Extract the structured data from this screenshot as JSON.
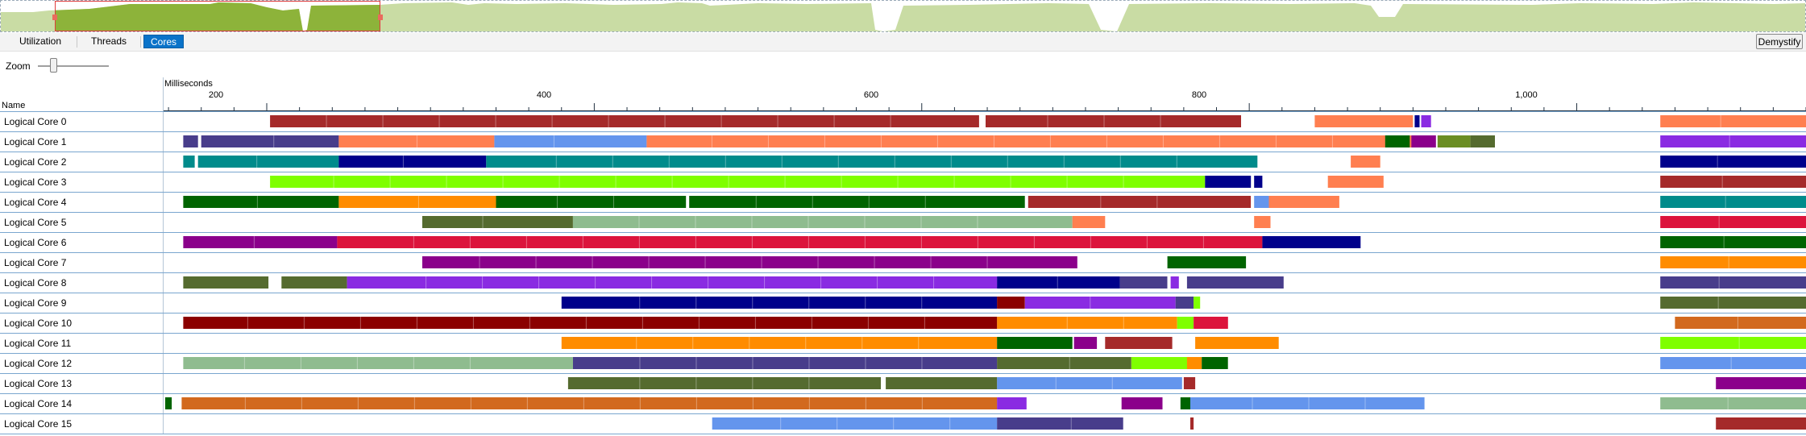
{
  "tabs": [
    {
      "label": "Utilization",
      "active": false
    },
    {
      "label": "Threads",
      "active": false
    },
    {
      "label": "Cores",
      "active": true
    }
  ],
  "demystify_label": "Demystify",
  "zoom": {
    "label": "Zoom"
  },
  "timeline": {
    "unit_label": "Milliseconds",
    "name_header": "Name",
    "ticks": [
      "200",
      "400",
      "600",
      "800",
      "1,000"
    ]
  },
  "cores": [
    {
      "label": "Logical Core 0"
    },
    {
      "label": "Logical Core 1"
    },
    {
      "label": "Logical Core 2"
    },
    {
      "label": "Logical Core 3"
    },
    {
      "label": "Logical Core 4"
    },
    {
      "label": "Logical Core 5"
    },
    {
      "label": "Logical Core 6"
    },
    {
      "label": "Logical Core 7"
    },
    {
      "label": "Logical Core 8"
    },
    {
      "label": "Logical Core 9"
    },
    {
      "label": "Logical Core 10"
    },
    {
      "label": "Logical Core 11"
    },
    {
      "label": "Logical Core 12"
    },
    {
      "label": "Logical Core 13"
    },
    {
      "label": "Logical Core 14"
    },
    {
      "label": "Logical Core 15"
    }
  ],
  "timeline_range_ms": [
    137,
    1140
  ],
  "colors": {
    "accent": "#0a73c9",
    "overview_fill": "#c9dca4",
    "overview_selected_fill": "#8db33a",
    "selection_border": "#e03c3c",
    "row_border": "#7aa6cf"
  },
  "segments": [
    [
      [
        "#a52a2a",
        202,
        635
      ],
      [
        "#a52a2a",
        639,
        795
      ],
      [
        "#ff7f50",
        840,
        900
      ],
      [
        "#00008b",
        901,
        904
      ],
      [
        "#8a2be2",
        905,
        911
      ],
      [
        "#ff7f50",
        1051,
        1140
      ]
    ],
    [
      [
        "#483d8b",
        149,
        158
      ],
      [
        "#483d8b",
        160,
        244
      ],
      [
        "#ff7f50",
        244,
        339
      ],
      [
        "#6495ed",
        339,
        432
      ],
      [
        "#ff7f50",
        432,
        903
      ],
      [
        "#006400",
        883,
        898
      ],
      [
        "#8b008b",
        899,
        914
      ],
      [
        "#6b8e23",
        915,
        935
      ],
      [
        "#556b2f",
        935,
        950
      ],
      [
        "#8a2be2",
        1051,
        1140
      ]
    ],
    [
      [
        "#008b8b",
        149,
        156
      ],
      [
        "#008b8b",
        158,
        244
      ],
      [
        "#00008b",
        244,
        334
      ],
      [
        "#008b8b",
        334,
        805
      ],
      [
        "#ff7f50",
        862,
        880
      ],
      [
        "#00008b",
        1051,
        1140
      ]
    ],
    [
      [
        "#7fff00",
        202,
        773
      ],
      [
        "#00008b",
        773,
        801
      ],
      [
        "#00008b",
        803,
        808
      ],
      [
        "#ff7f50",
        848,
        882
      ],
      [
        "#a52a2a",
        1051,
        1140
      ]
    ],
    [
      [
        "#006400",
        149,
        244
      ],
      [
        "#ff8c00",
        244,
        340
      ],
      [
        "#006400",
        340,
        456
      ],
      [
        "#006400",
        458,
        663
      ],
      [
        "#a52a2a",
        665,
        801
      ],
      [
        "#6495ed",
        803,
        812
      ],
      [
        "#ff7f50",
        812,
        855
      ],
      [
        "#008b8b",
        1051,
        1140
      ]
    ],
    [
      [
        "#556b2f",
        295,
        387
      ],
      [
        "#8fbc8f",
        387,
        692
      ],
      [
        "#ff7f50",
        692,
        712
      ],
      [
        "#ff7f50",
        803,
        813
      ],
      [
        "#dc143c",
        1051,
        1140
      ]
    ],
    [
      [
        "#8b008b",
        149,
        243
      ],
      [
        "#dc143c",
        243,
        808
      ],
      [
        "#00008b",
        808,
        868
      ],
      [
        "#006400",
        1051,
        1140
      ]
    ],
    [
      [
        "#8b008b",
        295,
        695
      ],
      [
        "#006400",
        750,
        798
      ],
      [
        "#ff8c00",
        1051,
        1140
      ]
    ],
    [
      [
        "#556b2f",
        149,
        201
      ],
      [
        "#556b2f",
        209,
        249
      ],
      [
        "#8a2be2",
        249,
        646
      ],
      [
        "#00008b",
        646,
        721
      ],
      [
        "#483d8b",
        721,
        750
      ],
      [
        "#8a2be2",
        752,
        757
      ],
      [
        "#483d8b",
        762,
        821
      ],
      [
        "#483d8b",
        1051,
        1140
      ]
    ],
    [
      [
        "#00008b",
        380,
        646
      ],
      [
        "#8b0000",
        646,
        663
      ],
      [
        "#8a2be2",
        663,
        755
      ],
      [
        "#483d8b",
        755,
        766
      ],
      [
        "#7fff00",
        766,
        770
      ],
      [
        "#556b2f",
        1051,
        1140
      ]
    ],
    [
      [
        "#8b0000",
        149,
        646
      ],
      [
        "#ff8c00",
        646,
        756
      ],
      [
        "#7fff00",
        756,
        766
      ],
      [
        "#dc143c",
        766,
        787
      ],
      [
        "#d2691e",
        1060,
        1140
      ]
    ],
    [
      [
        "#ff8c00",
        380,
        646
      ],
      [
        "#006400",
        646,
        692
      ],
      [
        "#8b008b",
        693,
        707
      ],
      [
        "#a52a2a",
        712,
        753
      ],
      [
        "#ff8c00",
        767,
        818
      ],
      [
        "#7fff00",
        1051,
        1140
      ]
    ],
    [
      [
        "#8fbc8f",
        149,
        387
      ],
      [
        "#483d8b",
        387,
        646
      ],
      [
        "#556b2f",
        646,
        728
      ],
      [
        "#7fff00",
        728,
        762
      ],
      [
        "#ff8c00",
        762,
        771
      ],
      [
        "#006400",
        771,
        787
      ],
      [
        "#6495ed",
        1051,
        1140
      ]
    ],
    [
      [
        "#556b2f",
        384,
        575
      ],
      [
        "#556b2f",
        578,
        646
      ],
      [
        "#6495ed",
        646,
        759
      ],
      [
        "#a52a2a",
        760,
        767
      ],
      [
        "#8b008b",
        1085,
        1140
      ]
    ],
    [
      [
        "#006400",
        138,
        142
      ],
      [
        "#d2691e",
        148,
        646
      ],
      [
        "#8a2be2",
        646,
        664
      ],
      [
        "#8b008b",
        722,
        747
      ],
      [
        "#006400",
        758,
        764
      ],
      [
        "#6495ed",
        764,
        907
      ],
      [
        "#8fbc8f",
        1051,
        1140
      ]
    ],
    [
      [
        "#6495ed",
        472,
        646
      ],
      [
        "#483d8b",
        646,
        723
      ],
      [
        "#a52a2a",
        764,
        766
      ],
      [
        "#a52a2a",
        1085,
        1140
      ]
    ]
  ]
}
